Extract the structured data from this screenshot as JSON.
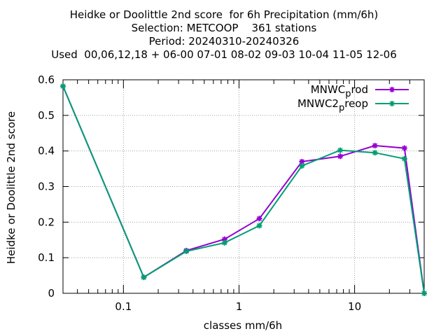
{
  "chart_data": {
    "type": "line",
    "title_lines": [
      "Heidke or Doolittle 2nd score  for 6h Precipitation (mm/6h)",
      "Selection: METCOOP    361 stations",
      "Period: 20240310-20240326",
      "Used  00,06,12,18 + 06-00 07-01 08-02 09-03 10-04 11-05 12-06"
    ],
    "xlabel": "classes mm/6h",
    "ylabel": "Heidke or Doolittle 2nd score",
    "x_scale": "log",
    "xlim": [
      0.03,
      40
    ],
    "ylim": [
      0,
      0.6
    ],
    "x_ticks": [
      0.1,
      1,
      10
    ],
    "x_tick_labels": [
      "0.1",
      "1",
      "10"
    ],
    "y_ticks": [
      0,
      0.1,
      0.2,
      0.3,
      0.4,
      0.5,
      0.6
    ],
    "y_tick_labels": [
      "0",
      "0.1",
      "0.2",
      "0.3",
      "0.4",
      "0.5",
      "0.6"
    ],
    "grid": true,
    "legend_position": "top-right",
    "x": [
      0.03,
      0.15,
      0.35,
      0.75,
      1.5,
      3.5,
      7.5,
      15,
      27,
      40
    ],
    "series": [
      {
        "name": "MNWC_prod",
        "name_parts": {
          "base": "MNWC",
          "sub": "p",
          "rest": "rod"
        },
        "color": "#9400d3",
        "values": [
          0.582,
          0.045,
          0.12,
          0.152,
          0.21,
          0.37,
          0.385,
          0.415,
          0.408,
          0.0
        ]
      },
      {
        "name": "MNWC2_preop",
        "name_parts": {
          "base": "MNWC2",
          "sub": "p",
          "rest": "reop"
        },
        "color": "#009e73",
        "values": [
          0.582,
          0.045,
          0.118,
          0.142,
          0.19,
          0.358,
          0.402,
          0.395,
          0.378,
          0.0
        ]
      }
    ]
  }
}
